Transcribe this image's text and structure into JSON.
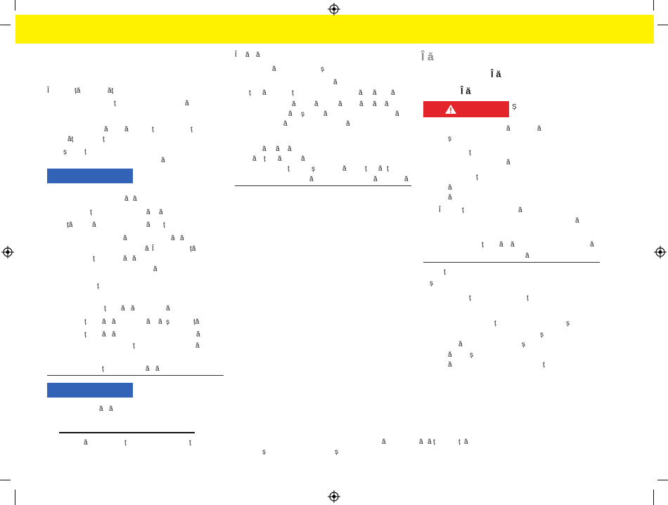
{
  "headings": {
    "right_h1": "Î ă",
    "right_h2": "Î ă",
    "right_h3": "Î ă",
    "warning_after": "Ș"
  },
  "left_column": [
    [
      "Î",
      "ță",
      "ăț"
    ],
    [
      "ț",
      "ă"
    ],
    [
      "ă",
      "ă",
      "ț",
      "ț"
    ],
    [
      "ăț",
      "ț"
    ],
    [
      "ș",
      "ț"
    ],
    [
      "ă"
    ],
    [
      "ă",
      "ă"
    ],
    [
      "ț",
      "ă",
      "ă"
    ],
    [
      "ță",
      "ă",
      "ă",
      "ț"
    ],
    [
      "ă",
      "ă",
      "ă"
    ],
    [
      "ă",
      "Î",
      "ță"
    ],
    [
      "ț",
      "ă",
      "ă"
    ],
    [
      "ă"
    ],
    [
      "ț"
    ],
    [
      "ț",
      "ă",
      "ă",
      "ă"
    ],
    [
      "ț",
      "ă",
      "ă",
      "ă",
      "ă",
      "ș",
      "ță"
    ],
    [
      "ț",
      "ă",
      "ă",
      "ă"
    ],
    [
      "ț",
      "ă"
    ],
    [
      "ț",
      "ă",
      "ă"
    ],
    [
      "ă",
      "ă"
    ],
    [
      "ă",
      "ț",
      "ț"
    ]
  ],
  "middle_column": [
    [
      "Î",
      "ă",
      "ă"
    ],
    [
      "ă",
      "ș"
    ],
    [
      "ă"
    ],
    [
      "ț",
      "ă",
      "ț",
      "ă",
      "ă",
      "ă"
    ],
    [
      "ă",
      "ă",
      "ă",
      "ă",
      "ă",
      "ă"
    ],
    [
      "ă",
      "ș",
      "ă",
      "ă"
    ],
    [
      "ă",
      "ă"
    ],
    [
      "ă",
      "ă",
      "ă"
    ],
    [
      "ă",
      "ț",
      "ă",
      "ă"
    ],
    [
      "ț",
      "ș",
      "ă",
      "ț",
      "ă",
      "ț"
    ],
    [
      "ă",
      "ă",
      "ă"
    ]
  ],
  "right_column": [
    [
      "ă",
      "ă"
    ],
    [
      "ș"
    ],
    [
      "ț"
    ],
    [
      "ă"
    ],
    [
      "ț"
    ],
    [
      "ă"
    ],
    [
      "ă"
    ],
    [
      "Î",
      "ț",
      "ă"
    ],
    [
      "ă"
    ],
    [
      "ț",
      "ă",
      "ă",
      "ă"
    ],
    [
      "ă"
    ],
    [
      "ț"
    ],
    [
      "ș"
    ],
    [
      "ț",
      "ț"
    ],
    [
      "ț",
      "ș"
    ],
    [
      "ș"
    ],
    [
      "ă",
      "ș"
    ],
    [
      "ă",
      "ș"
    ],
    [
      "ă",
      "ț"
    ]
  ],
  "footer": [
    [
      "ă",
      "ă",
      "ă",
      "ț",
      "ț",
      "ă"
    ],
    [
      "ș",
      "ș"
    ]
  ],
  "colors": {
    "header": "#fff200",
    "blue": "#3263b6",
    "warning": "#e3242b"
  },
  "icons": [
    "registration-mark-icon",
    "warning-triangle-icon"
  ]
}
